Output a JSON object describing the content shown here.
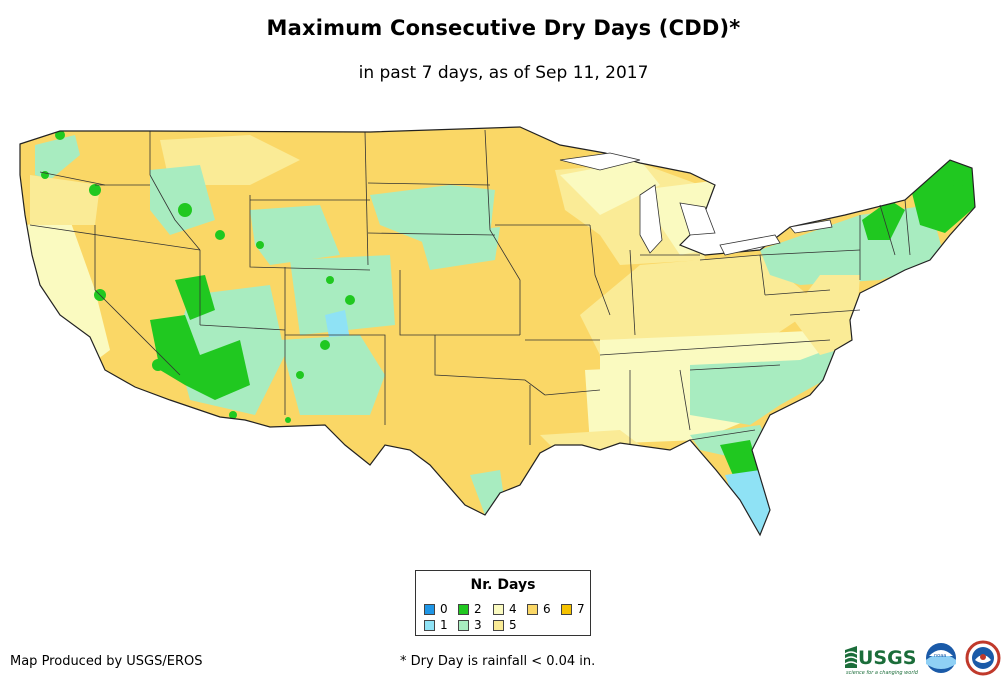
{
  "title": "Maximum Consecutive Dry Days (CDD)*",
  "subtitle": "in past 7 days, as of Sep 11, 2017",
  "legend": {
    "title": "Nr. Days",
    "items": [
      {
        "label": "0",
        "color": "#1f96e6"
      },
      {
        "label": "1",
        "color": "#8fe2f5"
      },
      {
        "label": "2",
        "color": "#20c820"
      },
      {
        "label": "3",
        "color": "#a8ecc0"
      },
      {
        "label": "4",
        "color": "#fafac0"
      },
      {
        "label": "5",
        "color": "#faeb96"
      },
      {
        "label": "6",
        "color": "#fad766"
      },
      {
        "label": "7",
        "color": "#f5c200"
      }
    ]
  },
  "footer": {
    "credit": "Map Produced by USGS/EROS",
    "note": "* Dry Day is rainfall < 0.04 in."
  },
  "logos": {
    "usgs": "USGS",
    "usgs_tagline": "science for a changing world",
    "noaa": "noaa"
  }
}
